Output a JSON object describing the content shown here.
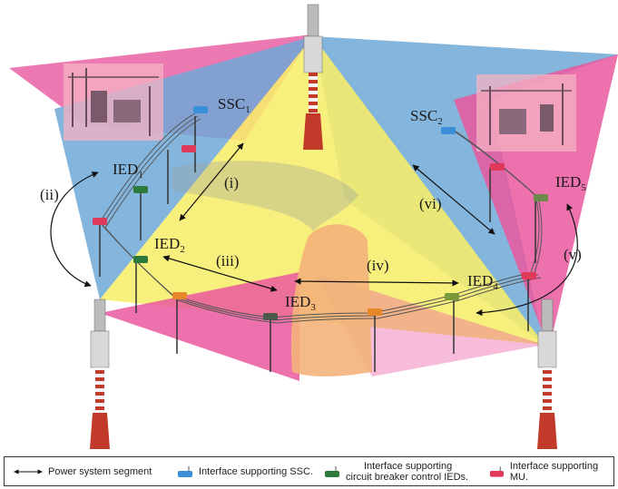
{
  "labels": {
    "ssc1": "SSC",
    "ssc1_sub": "1",
    "ssc2": "SSC",
    "ssc2_sub": "2",
    "ied1": "IED",
    "ied1_sub": "1",
    "ied2": "IED",
    "ied2_sub": "2",
    "ied3": "IED",
    "ied3_sub": "3",
    "ied4": "IED",
    "ied4_sub": "4",
    "ied5": "IED",
    "ied5_sub": "5",
    "link_i": "(i)",
    "link_ii": "(ii)",
    "link_iii": "(iii)",
    "link_iv": "(iv)",
    "link_v": "(v)",
    "link_vi": "(vi)"
  },
  "legend": {
    "power_segment": "Power system segment",
    "ssc_interface": "Interface supporting SSC.",
    "cb_interface_line1": "Interface supporting",
    "cb_interface_line2": "circuit breaker control IEDs.",
    "mu_interface": "Interface supporting MU."
  },
  "colors": {
    "pink_coverage": "#e9589f",
    "blue_coverage": "#6fa8d6",
    "yellow_coverage": "#f7ee6a",
    "orange_coverage": "#f3b27a",
    "ssc_interface": "#3a8fd8",
    "cb_interface": "#2e7a3c",
    "mu_interface": "#e03a5a",
    "relay_interface": "#e8872a",
    "tower_red": "#c23a2a",
    "substation_overlay": "#f4b3c3"
  }
}
